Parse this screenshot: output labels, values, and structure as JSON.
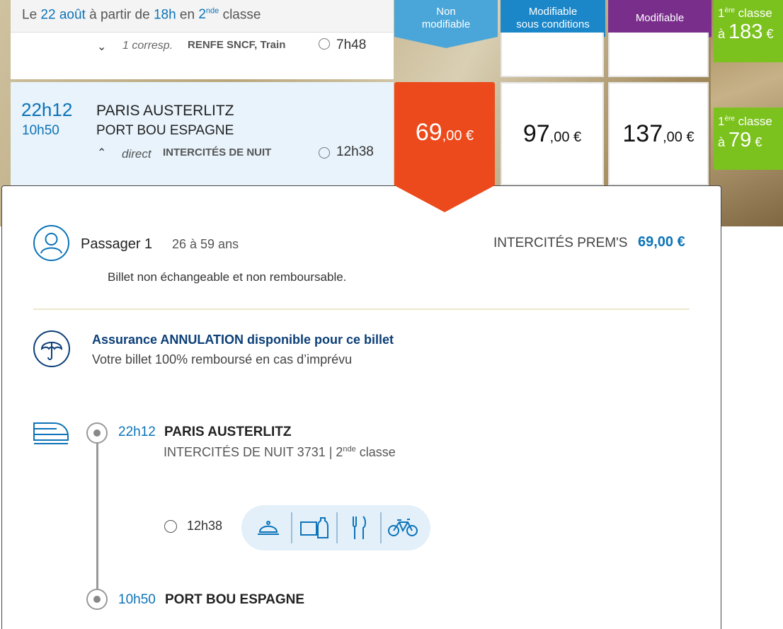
{
  "header": {
    "prefix": "Le",
    "date": "22 août",
    "middle": "à partir de",
    "time": "18h",
    "in": "en",
    "class_num": "2",
    "class_sup": "nde",
    "class_word": "classe"
  },
  "tariffs": [
    {
      "line1": "Non",
      "line2": "modifiable",
      "color": "#4aa6d8"
    },
    {
      "line1": "Modifiable",
      "line2": "sous conditions",
      "color": "#1b87c9"
    },
    {
      "line1": "Modifiable",
      "line2": "",
      "color": "#7a2e8c"
    }
  ],
  "prev_row": {
    "correspondences": "1 corresp.",
    "carrier": "RENFE SNCF, Train",
    "duration": "7h48"
  },
  "selected_row": {
    "departure": "22h12",
    "arrival": "10h50",
    "origin": "PARIS AUSTERLITZ",
    "destination": "PORT BOU ESPAGNE",
    "type": "direct",
    "carrier": "INTERCITÉS DE NUIT",
    "duration": "12h38",
    "prices": [
      {
        "int": "69",
        "dec": ",00 €"
      },
      {
        "int": "97",
        "dec": ",00 €"
      },
      {
        "int": "137",
        "dec": ",00 €"
      }
    ]
  },
  "first_class_badges": [
    {
      "num": "1",
      "sup": "ère",
      "word": "classe",
      "prefix": "à",
      "price": "183",
      "cur": "€"
    },
    {
      "num": "1",
      "sup": "ère",
      "word": "classe",
      "prefix": "à",
      "price": "79",
      "cur": "€"
    }
  ],
  "passenger": {
    "label": "Passager 1",
    "age": "26 à 59 ans",
    "tariff_name": "INTERCITÉS PREM'S",
    "tariff_price": "69,00 €",
    "conditions": "Billet non échangeable et non remboursable."
  },
  "insurance": {
    "title": "Assurance ANNULATION disponible pour ce billet",
    "subtitle": "Votre billet 100% remboursé en cas d’imprévu"
  },
  "journey": {
    "dep_time": "22h12",
    "dep_station": "PARIS AUSTERLITZ",
    "train": "INTERCITÉS DE NUIT 3731 | 2",
    "train_sup": "nde",
    "train_class": "classe",
    "duration": "12h38",
    "services": [
      "meal-service-icon",
      "snack-bar-icon",
      "restaurant-icon",
      "bike-icon"
    ],
    "arr_time": "10h50",
    "arr_station": "PORT BOU ESPAGNE"
  },
  "colors": {
    "accent": "#0c73b8",
    "selected_price": "#ec4a1c",
    "first_class": "#7cc21e"
  }
}
